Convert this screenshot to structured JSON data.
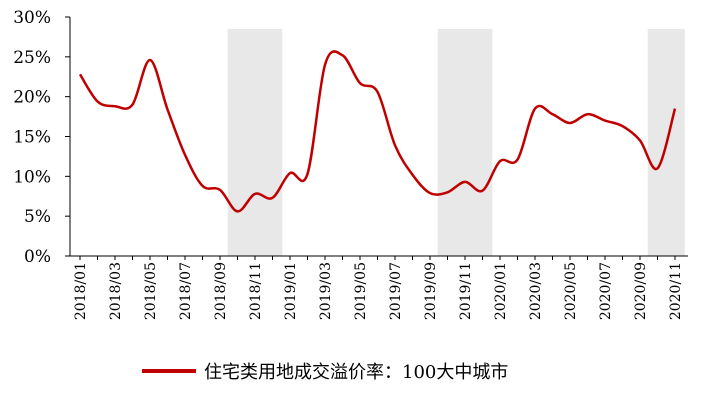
{
  "chart_data": {
    "type": "line",
    "title": "",
    "xlabel": "",
    "ylabel": "",
    "ylim": [
      0,
      30
    ],
    "y_unit": "%",
    "y_ticks": [
      "0%",
      "5%",
      "10%",
      "15%",
      "20%",
      "25%",
      "30%"
    ],
    "x_tick_labels": [
      "2018/01",
      "2018/03",
      "2018/05",
      "2018/07",
      "2018/09",
      "2018/11",
      "2019/01",
      "2019/03",
      "2019/05",
      "2019/07",
      "2019/09",
      "2019/11",
      "2020/01",
      "2020/03",
      "2020/05",
      "2020/07",
      "2020/09",
      "2020/11"
    ],
    "categories": [
      "2018/01",
      "2018/02",
      "2018/03",
      "2018/04",
      "2018/05",
      "2018/06",
      "2018/07",
      "2018/08",
      "2018/09",
      "2018/10",
      "2018/11",
      "2018/12",
      "2019/01",
      "2019/02",
      "2019/03",
      "2019/04",
      "2019/05",
      "2019/06",
      "2019/07",
      "2019/08",
      "2019/09",
      "2019/10",
      "2019/11",
      "2019/12",
      "2020/01",
      "2020/02",
      "2020/03",
      "2020/04",
      "2020/05",
      "2020/06",
      "2020/07",
      "2020/08",
      "2020/09",
      "2020/10",
      "2020/11"
    ],
    "series": [
      {
        "name": "住宅类用地成交溢价率：100大中城市",
        "color": "#c00000",
        "values": [
          22.8,
          19.4,
          18.8,
          19.0,
          24.6,
          18.4,
          12.7,
          8.8,
          8.3,
          5.6,
          7.8,
          7.3,
          10.4,
          10.3,
          24.0,
          25.2,
          21.7,
          20.6,
          13.9,
          10.2,
          7.9,
          8.0,
          9.3,
          8.2,
          11.9,
          12.1,
          18.5,
          17.8,
          16.7,
          17.8,
          17.0,
          16.3,
          14.5,
          11.0,
          18.5
        ]
      }
    ],
    "shaded_ranges": [
      [
        "2018/10",
        "2018/12"
      ],
      [
        "2019/10",
        "2019/12"
      ],
      [
        "2020/10",
        "2020/11"
      ]
    ],
    "shade_color": "#e8e8e8",
    "grid": false,
    "legend_position": "bottom"
  }
}
